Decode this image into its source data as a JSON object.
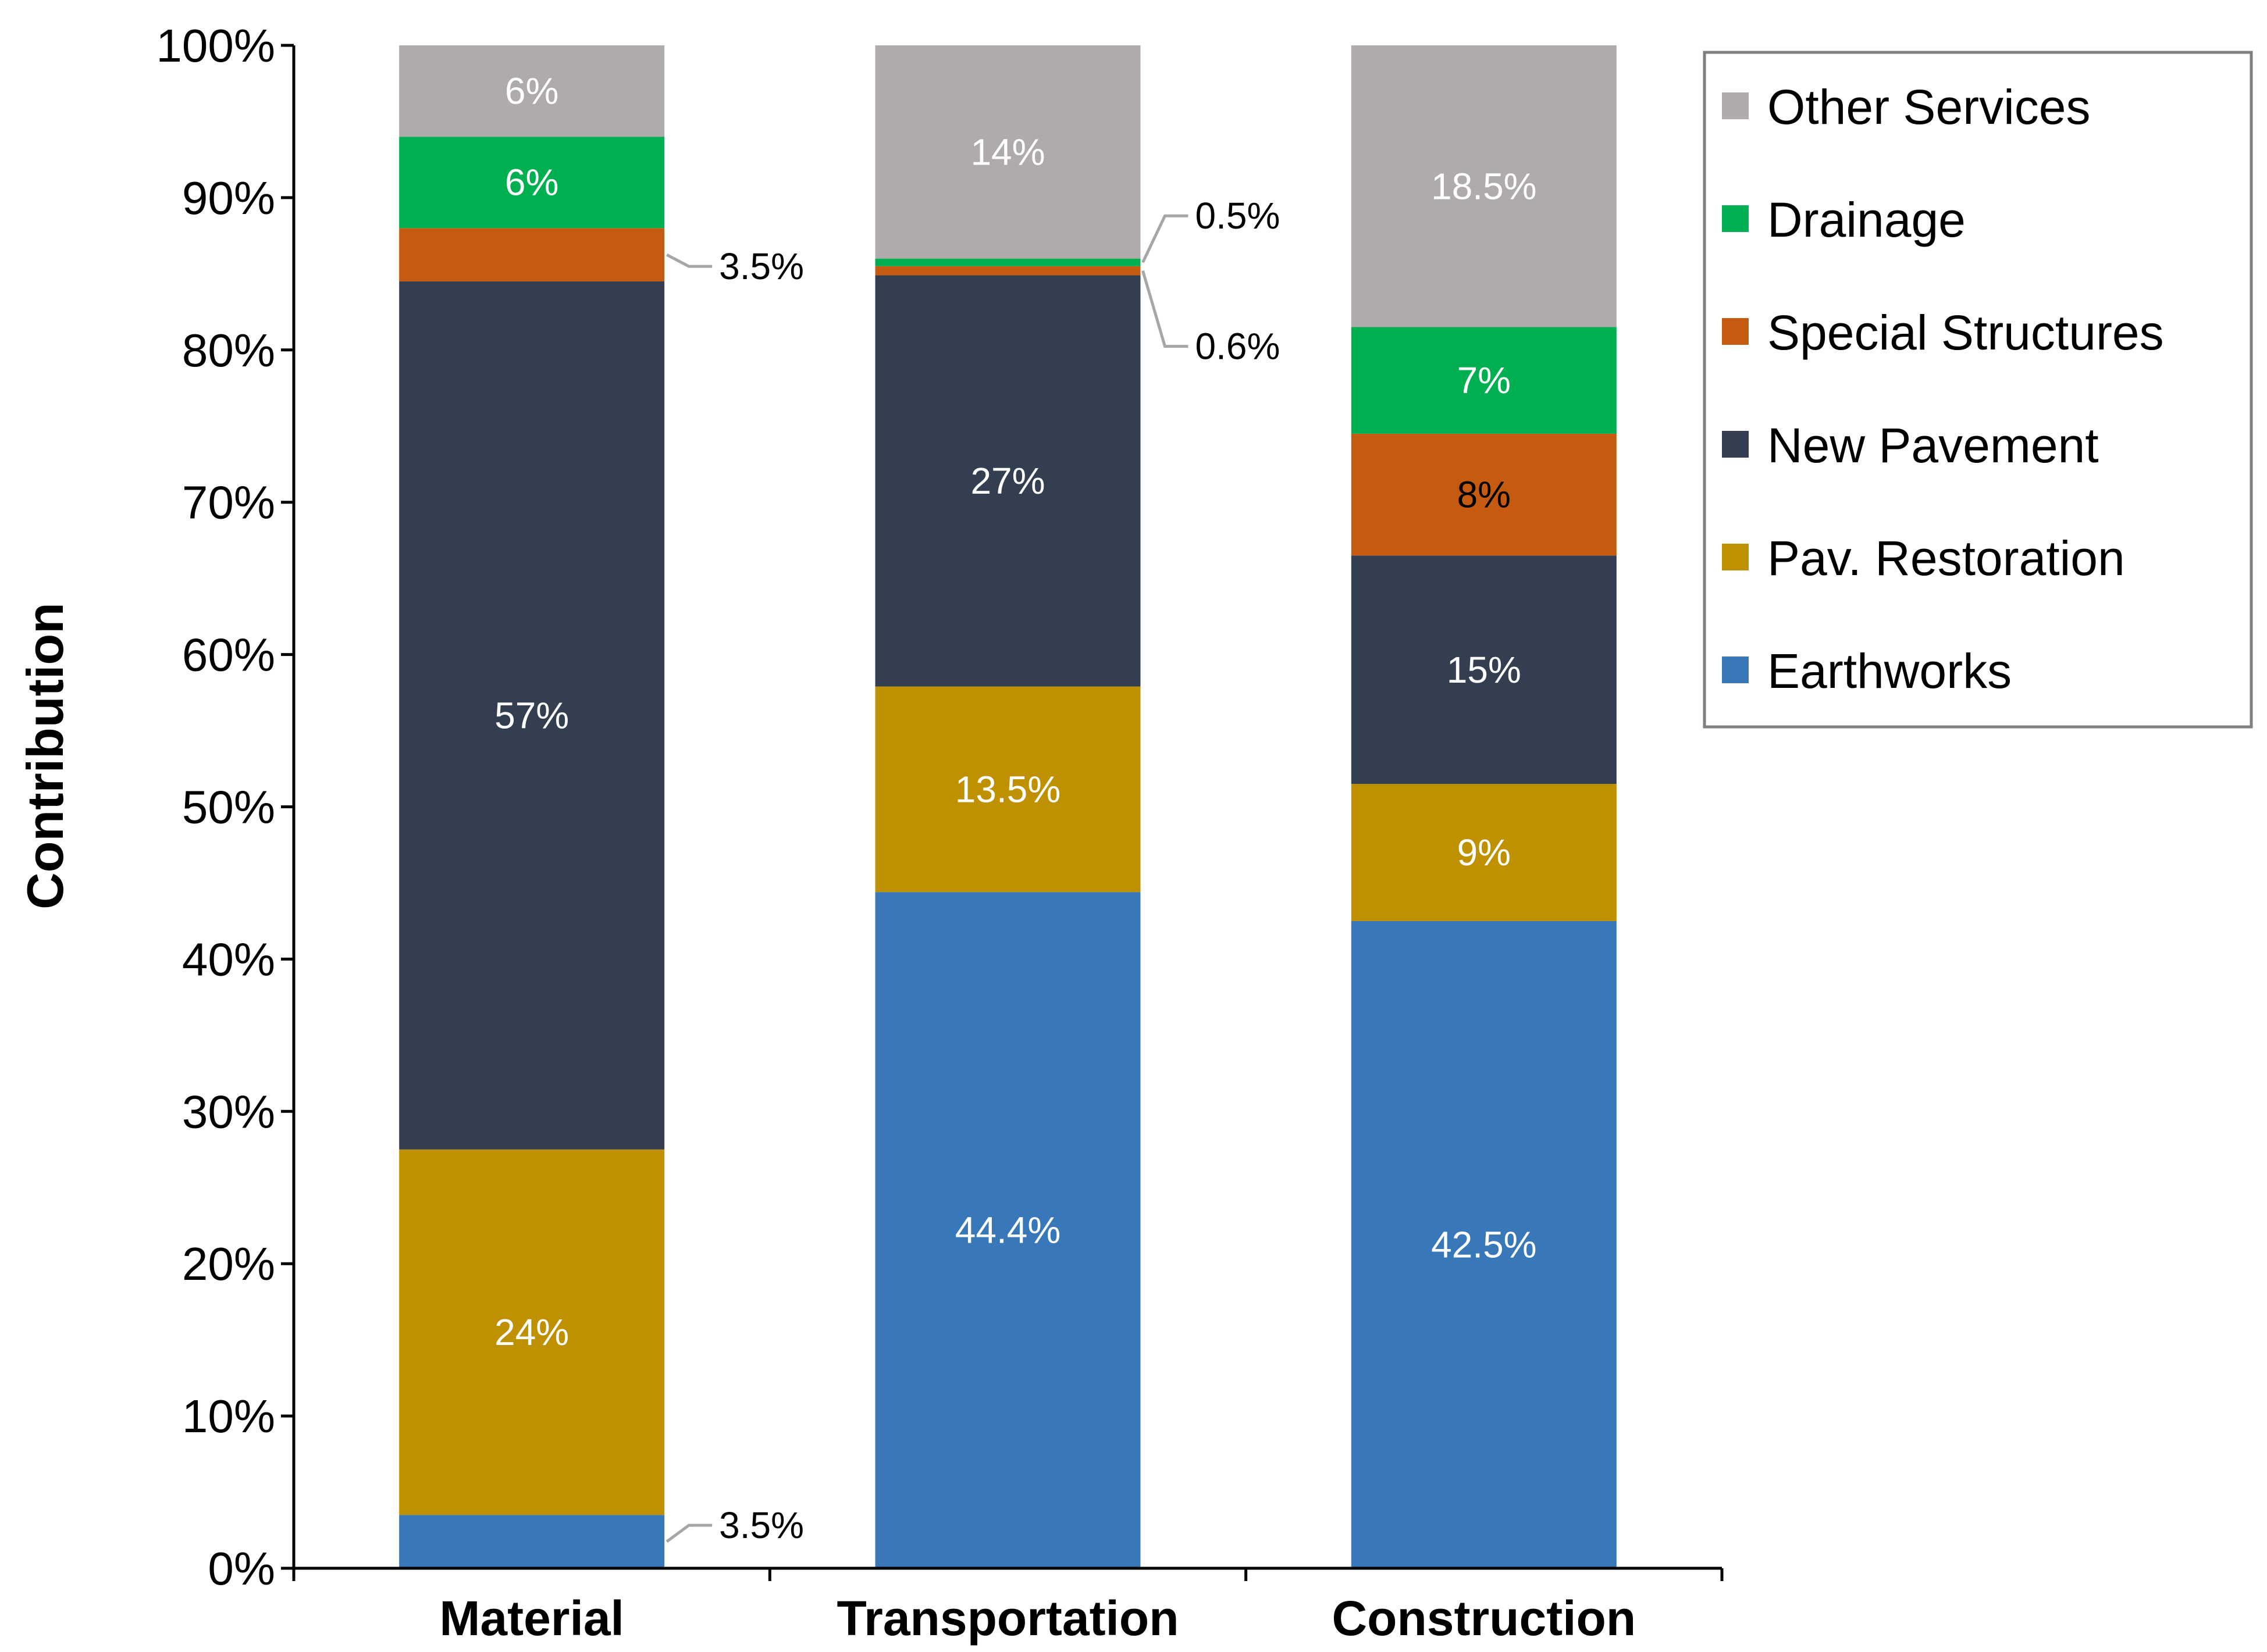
{
  "chart_data": {
    "type": "bar",
    "stacked": true,
    "title": "",
    "xlabel": "",
    "ylabel": "Contribution",
    "ylim": [
      0,
      100
    ],
    "yticks": [
      "0%",
      "10%",
      "20%",
      "30%",
      "40%",
      "50%",
      "60%",
      "70%",
      "80%",
      "90%",
      "100%"
    ],
    "grid": false,
    "legend_position": "top-right",
    "categories": [
      "Material",
      "Transportation",
      "Construction"
    ],
    "series": [
      {
        "name": "Earthworks",
        "color": "#3878b8",
        "values": [
          3.5,
          44.4,
          42.5
        ],
        "labels": [
          "3.5%",
          "44.4%",
          "42.5%"
        ]
      },
      {
        "name": "Pav. Restoration",
        "color": "#bf9000",
        "values": [
          24,
          13.5,
          9
        ],
        "labels": [
          "24%",
          "13.5%",
          "9%"
        ]
      },
      {
        "name": "New Pavement",
        "color": "#333f50",
        "values": [
          57,
          27,
          15
        ],
        "labels": [
          "57%",
          "27%",
          "15%"
        ]
      },
      {
        "name": "Special Structures",
        "color": "#c55a11",
        "values": [
          3.5,
          0.6,
          8
        ],
        "labels": [
          "3.5%",
          "0.6%",
          "8%"
        ]
      },
      {
        "name": "Drainage",
        "color": "#00b050",
        "values": [
          6,
          0.5,
          7
        ],
        "labels": [
          "6%",
          "0.5%",
          "7%"
        ]
      },
      {
        "name": "Other Services",
        "color": "#afabab",
        "values": [
          6,
          14,
          18.5
        ],
        "labels": [
          "6%",
          "14%",
          "18.5%"
        ]
      }
    ]
  }
}
